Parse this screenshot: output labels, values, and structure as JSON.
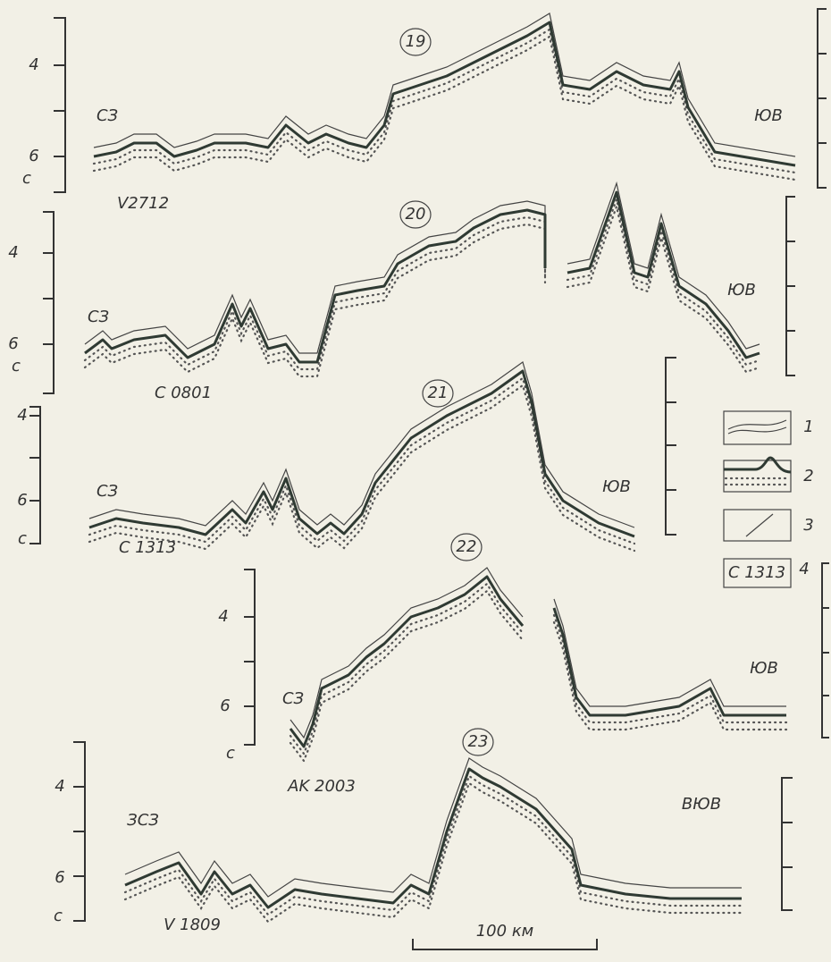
{
  "profiles": [
    {
      "number": "19",
      "left_label": "СЗ",
      "right_label": "ЮВ",
      "track": "V2712",
      "axis_labels": [
        "4",
        "6"
      ],
      "unit": "с"
    },
    {
      "number": "20",
      "left_label": "СЗ",
      "right_label": "ЮВ",
      "track": "C 0801",
      "axis_labels": [
        "4",
        "6"
      ],
      "unit": "с"
    },
    {
      "number": "21",
      "left_label": "СЗ",
      "right_label": "ЮВ",
      "track": "C 1313",
      "axis_labels": [
        "4",
        "6"
      ],
      "unit": "с"
    },
    {
      "number": "22",
      "left_label": "СЗ",
      "right_label": "ЮВ",
      "track": "AK 2003",
      "axis_labels": [
        "4",
        "6"
      ],
      "unit": "с"
    },
    {
      "number": "23",
      "left_label": "ЗСЗ",
      "right_label": "ВЮВ",
      "track": "V 1809",
      "axis_labels": [
        "4",
        "6"
      ],
      "unit": "с"
    }
  ],
  "legend": [
    {
      "number": "1"
    },
    {
      "number": "2"
    },
    {
      "number": "3"
    },
    {
      "number": "4",
      "sample": "C 1313"
    }
  ],
  "scale_bar": "100 км"
}
